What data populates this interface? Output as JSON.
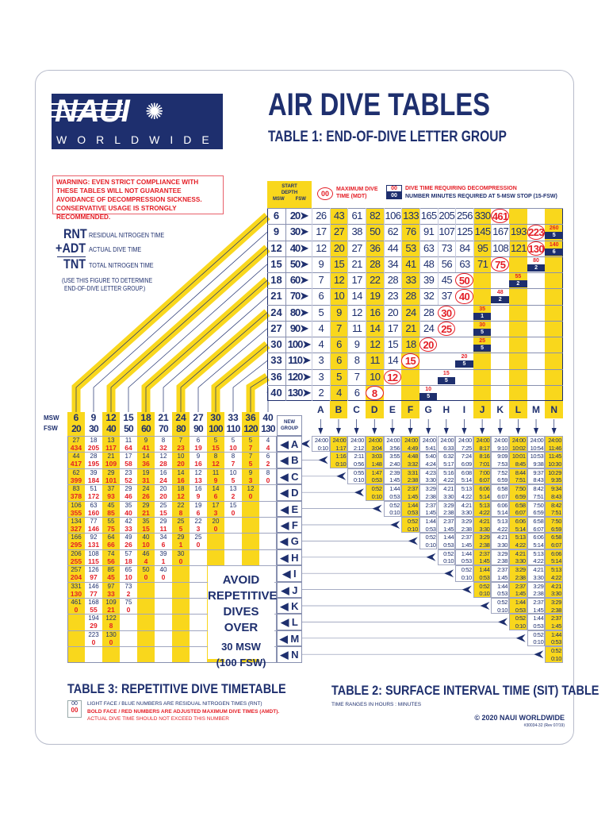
{
  "header": {
    "logo_text": "NAUI",
    "logo_subtext": "WORLDWIDE",
    "title": "AIR DIVE TABLES",
    "subtitle": "TABLE 1: END-OF-DIVE LETTER GROUP"
  },
  "warning": "WARNING: EVEN STRICT COMPLIANCE WITH THESE TABLES WILL NOT GUARANTEE AVOIDANCE OF DECOMPRESSION SICKNESS. CONSERVATIVE USAGE IS STRONGLY RECOMMENDED.",
  "formula": [
    {
      "abbr": "RNT",
      "desc": "RESIDUAL NITROGEN TIME"
    },
    {
      "abbr": "+ADT",
      "desc": "ACTUAL DIVE TIME"
    },
    {
      "abbr": "TNT",
      "desc": "TOTAL NITROGEN TIME"
    }
  ],
  "formula_note": [
    "(USE THIS FIGURE TO DETERMINE",
    "END-OF-DIVE LETTER GROUP.)"
  ],
  "table1": {
    "header": {
      "l1": "START",
      "l2": "DEPTH",
      "msw": "MSW",
      "fsw": "FSW"
    },
    "legend": {
      "sample": "00",
      "mdt": "MAXIMUM DIVE TIME (MDT)",
      "deco": "DIVE TIME REQUIRING DECOMPRESSION",
      "stop": "NUMBER MINUTES REQUIRED AT 5-MSW STOP (15-FSW)"
    },
    "groups": [
      "A",
      "B",
      "C",
      "D",
      "E",
      "F",
      "G",
      "H",
      "I",
      "J",
      "K",
      "L",
      "M",
      "N"
    ],
    "rows": [
      {
        "msw": "6",
        "fsw": "20",
        "cells": [
          "26",
          "43",
          "61",
          "82",
          "106",
          "133",
          "165",
          "205",
          "256",
          "330",
          {
            "mdt": "461"
          },
          null,
          null,
          null
        ]
      },
      {
        "msw": "9",
        "fsw": "30",
        "cells": [
          "17",
          "27",
          "38",
          "50",
          "62",
          "76",
          "91",
          "107",
          "125",
          "145",
          "167",
          "193",
          {
            "mdt": "223"
          },
          {
            "deco": "260",
            "stop": "5"
          }
        ]
      },
      {
        "msw": "12",
        "fsw": "40",
        "cells": [
          "12",
          "20",
          "27",
          "36",
          "44",
          "53",
          "63",
          "73",
          "84",
          "95",
          "108",
          "121",
          {
            "mdt": "130"
          },
          {
            "deco": "140",
            "stop": "6"
          }
        ]
      },
      {
        "msw": "15",
        "fsw": "50",
        "cells": [
          "9",
          "15",
          "21",
          "28",
          "34",
          "41",
          "48",
          "56",
          "63",
          "71",
          {
            "mdt": "75"
          },
          null,
          {
            "deco": "80",
            "stop": "2"
          },
          null
        ]
      },
      {
        "msw": "18",
        "fsw": "60",
        "cells": [
          "7",
          "12",
          "17",
          "22",
          "28",
          "33",
          "39",
          "45",
          {
            "mdt": "50"
          },
          null,
          null,
          {
            "deco": "55",
            "stop": "2"
          },
          null,
          null
        ]
      },
      {
        "msw": "21",
        "fsw": "70",
        "cells": [
          "6",
          "10",
          "14",
          "19",
          "23",
          "28",
          "32",
          "37",
          {
            "mdt": "40"
          },
          null,
          {
            "deco": "48",
            "stop": "2"
          },
          null,
          null,
          null
        ]
      },
      {
        "msw": "24",
        "fsw": "80",
        "cells": [
          "5",
          "9",
          "12",
          "16",
          "20",
          "24",
          "28",
          {
            "mdt": "30"
          },
          null,
          {
            "deco": "35",
            "stop": "1"
          },
          null,
          null,
          null,
          null
        ]
      },
      {
        "msw": "27",
        "fsw": "90",
        "cells": [
          "4",
          "7",
          "11",
          "14",
          "17",
          "21",
          "24",
          {
            "mdt": "25"
          },
          null,
          {
            "deco": "30",
            "stop": "5"
          },
          null,
          null,
          null,
          null
        ]
      },
      {
        "msw": "30",
        "fsw": "100",
        "cells": [
          "4",
          "6",
          "9",
          "12",
          "15",
          "18",
          {
            "mdt": "20"
          },
          null,
          null,
          {
            "deco": "25",
            "stop": "5"
          },
          null,
          null,
          null,
          null
        ]
      },
      {
        "msw": "33",
        "fsw": "110",
        "cells": [
          "3",
          "6",
          "8",
          "11",
          "14",
          {
            "mdt": "15"
          },
          null,
          null,
          {
            "deco": "20",
            "stop": "5"
          },
          null,
          null,
          null,
          null,
          null
        ]
      },
      {
        "msw": "36",
        "fsw": "120",
        "cells": [
          "3",
          "5",
          "7",
          "10",
          {
            "mdt": "12"
          },
          null,
          null,
          {
            "deco": "15",
            "stop": "5"
          },
          null,
          null,
          null,
          null,
          null,
          null
        ]
      },
      {
        "msw": "40",
        "fsw": "130",
        "cells": [
          "2",
          "4",
          "6",
          {
            "mdt": "8"
          },
          null,
          null,
          {
            "deco": "10",
            "stop": "5"
          },
          null,
          null,
          null,
          null,
          null,
          null,
          null
        ]
      }
    ]
  },
  "table3": {
    "title": "TABLE 3: REPETITIVE DIVE TIMETABLE",
    "msw_label": "MSW",
    "fsw_label": "FSW",
    "new_group_label": "NEW GROUP",
    "depths": [
      [
        "6",
        "20"
      ],
      [
        "9",
        "30"
      ],
      [
        "12",
        "40"
      ],
      [
        "15",
        "50"
      ],
      [
        "18",
        "60"
      ],
      [
        "21",
        "70"
      ],
      [
        "24",
        "80"
      ],
      [
        "27",
        "90"
      ],
      [
        "30",
        "100"
      ],
      [
        "33",
        "110"
      ],
      [
        "36",
        "120"
      ],
      [
        "40",
        "130"
      ]
    ],
    "rows": [
      [
        [
          "27",
          "434"
        ],
        [
          "18",
          "205"
        ],
        [
          "13",
          "117"
        ],
        [
          "11",
          "64"
        ],
        [
          "9",
          "41"
        ],
        [
          "8",
          "32"
        ],
        [
          "7",
          "23"
        ],
        [
          "6",
          "19"
        ],
        [
          "5",
          "15"
        ],
        [
          "5",
          "10"
        ],
        [
          "5",
          "7"
        ],
        [
          "4",
          "4"
        ]
      ],
      [
        [
          "44",
          "417"
        ],
        [
          "28",
          "195"
        ],
        [
          "21",
          "109"
        ],
        [
          "17",
          "58"
        ],
        [
          "14",
          "36"
        ],
        [
          "12",
          "28"
        ],
        [
          "10",
          "20"
        ],
        [
          "9",
          "16"
        ],
        [
          "8",
          "12"
        ],
        [
          "8",
          "7"
        ],
        [
          "7",
          "5"
        ],
        [
          "6",
          "2"
        ]
      ],
      [
        [
          "62",
          "399"
        ],
        [
          "39",
          "184"
        ],
        [
          "29",
          "101"
        ],
        [
          "23",
          "52"
        ],
        [
          "19",
          "31"
        ],
        [
          "16",
          "24"
        ],
        [
          "14",
          "16"
        ],
        [
          "12",
          "13"
        ],
        [
          "11",
          "9"
        ],
        [
          "10",
          "5"
        ],
        [
          "9",
          "3"
        ],
        [
          "8",
          "0"
        ]
      ],
      [
        [
          "83",
          "378"
        ],
        [
          "51",
          "172"
        ],
        [
          "37",
          "93"
        ],
        [
          "29",
          "46"
        ],
        [
          "24",
          "26"
        ],
        [
          "20",
          "20"
        ],
        [
          "18",
          "12"
        ],
        [
          "16",
          "9"
        ],
        [
          "14",
          "6"
        ],
        [
          "13",
          "2"
        ],
        [
          "12",
          "0"
        ]
      ],
      [
        [
          "106",
          "355"
        ],
        [
          "63",
          "160"
        ],
        [
          "45",
          "85"
        ],
        [
          "35",
          "40"
        ],
        [
          "29",
          "21"
        ],
        [
          "25",
          "15"
        ],
        [
          "22",
          "8"
        ],
        [
          "19",
          "6"
        ],
        [
          "17",
          "3"
        ],
        [
          "15",
          "0"
        ]
      ],
      [
        [
          "134",
          "327"
        ],
        [
          "77",
          "146"
        ],
        [
          "55",
          "75"
        ],
        [
          "42",
          "33"
        ],
        [
          "35",
          "15"
        ],
        [
          "29",
          "11"
        ],
        [
          "25",
          "5"
        ],
        [
          "22",
          "3"
        ],
        [
          "20",
          "0"
        ]
      ],
      [
        [
          "166",
          "295"
        ],
        [
          "92",
          "131"
        ],
        [
          "64",
          "66"
        ],
        [
          "49",
          "26"
        ],
        [
          "40",
          "10"
        ],
        [
          "34",
          "6"
        ],
        [
          "29",
          "1"
        ],
        [
          "25",
          "0"
        ]
      ],
      [
        [
          "206",
          "255"
        ],
        [
          "108",
          "115"
        ],
        [
          "74",
          "56"
        ],
        [
          "57",
          "18"
        ],
        [
          "46",
          "4"
        ],
        [
          "39",
          "1"
        ],
        [
          "30",
          "0"
        ]
      ],
      [
        [
          "257",
          "204"
        ],
        [
          "126",
          "97"
        ],
        [
          "85",
          "45"
        ],
        [
          "65",
          "10"
        ],
        [
          "50",
          "0"
        ],
        [
          "40",
          "0"
        ]
      ],
      [
        [
          "331",
          "130"
        ],
        [
          "146",
          "77"
        ],
        [
          "97",
          "33"
        ],
        [
          "73",
          "2"
        ]
      ],
      [
        [
          "461",
          "0"
        ],
        [
          "168",
          "55"
        ],
        [
          "109",
          "21"
        ],
        [
          "75",
          "0"
        ]
      ],
      [
        null,
        [
          "194",
          "29"
        ],
        [
          "122",
          "8"
        ]
      ],
      [
        null,
        [
          "223",
          "0"
        ],
        [
          "130",
          "0"
        ]
      ],
      []
    ],
    "avoid": [
      "AVOID",
      "REPETITIVE",
      "DIVES OVER"
    ],
    "avoid_depth": [
      "30 MSW",
      "(100 FSW)"
    ],
    "legend_sample_light": "00",
    "legend_sample_bold": "00",
    "legend_light": "LIGHT FACE / BLUE NUMBERS ARE RESIDUAL NITROGEN TIMES (RNT)",
    "legend_bold": "BOLD FACE / RED NUMBERS ARE ADJUSTED MAXIMUM DIVE TIMES (AMDT).",
    "legend_bold2": "ACTUAL DIVE TIME SHOULD NOT EXCEED THIS NUMBER"
  },
  "table2": {
    "title": "TABLE 2: SURFACE INTERVAL TIME (SIT) TABLE",
    "note": "TIME RANGES IN HOURS : MINUTES",
    "columns": [
      [
        [
          "24:00",
          "0:10"
        ]
      ],
      [
        [
          "24:00",
          "1:17"
        ],
        [
          "1:16",
          "0:10"
        ]
      ],
      [
        [
          "24:00",
          "2:12"
        ],
        [
          "2:11",
          "0:56"
        ],
        [
          "0:55",
          "0:10"
        ]
      ],
      [
        [
          "24:00",
          "3:04"
        ],
        [
          "3:03",
          "1:48"
        ],
        [
          "1:47",
          "0:53"
        ],
        [
          "0:52",
          "0:10"
        ]
      ],
      [
        [
          "24:00",
          "3:56"
        ],
        [
          "3:55",
          "2:40"
        ],
        [
          "2:39",
          "1:45"
        ],
        [
          "1:44",
          "0:53"
        ],
        [
          "0:52",
          "0:10"
        ]
      ],
      [
        [
          "24:00",
          "4:49"
        ],
        [
          "4:48",
          "3:32"
        ],
        [
          "3:31",
          "2:38"
        ],
        [
          "2:37",
          "1:45"
        ],
        [
          "1:44",
          "0:53"
        ],
        [
          "0:52",
          "0:10"
        ]
      ],
      [
        [
          "24:00",
          "5:41"
        ],
        [
          "5:40",
          "4:24"
        ],
        [
          "4:23",
          "3:30"
        ],
        [
          "3:29",
          "2:38"
        ],
        [
          "2:37",
          "1:45"
        ],
        [
          "1:44",
          "0:53"
        ],
        [
          "0:52",
          "0:10"
        ]
      ],
      [
        [
          "24:00",
          "6:33"
        ],
        [
          "6:32",
          "5:17"
        ],
        [
          "5:16",
          "4:22"
        ],
        [
          "4:21",
          "3:30"
        ],
        [
          "3:29",
          "2:38"
        ],
        [
          "2:37",
          "1:45"
        ],
        [
          "1:44",
          "0:53"
        ],
        [
          "0:52",
          "0:10"
        ]
      ],
      [
        [
          "24:00",
          "7:25"
        ],
        [
          "7:24",
          "6:09"
        ],
        [
          "6:08",
          "5:14"
        ],
        [
          "5:13",
          "4:22"
        ],
        [
          "4:21",
          "3:30"
        ],
        [
          "3:29",
          "2:38"
        ],
        [
          "2:37",
          "1:45"
        ],
        [
          "1:44",
          "0:53"
        ],
        [
          "0:52",
          "0:10"
        ]
      ],
      [
        [
          "24:00",
          "8:17"
        ],
        [
          "8:16",
          "7:01"
        ],
        [
          "7:00",
          "6:07"
        ],
        [
          "6:06",
          "5:14"
        ],
        [
          "5:13",
          "4:22"
        ],
        [
          "4:21",
          "3:30"
        ],
        [
          "3:29",
          "2:38"
        ],
        [
          "2:37",
          "1:45"
        ],
        [
          "1:44",
          "0:53"
        ],
        [
          "0:52",
          "0:10"
        ]
      ],
      [
        [
          "24:00",
          "9:10"
        ],
        [
          "9:09",
          "7:53"
        ],
        [
          "7:52",
          "6:59"
        ],
        [
          "6:58",
          "6:07"
        ],
        [
          "6:06",
          "5:14"
        ],
        [
          "5:13",
          "4:22"
        ],
        [
          "4:21",
          "3:30"
        ],
        [
          "3:29",
          "2:38"
        ],
        [
          "2:37",
          "1:45"
        ],
        [
          "1:44",
          "0:53"
        ],
        [
          "0:52",
          "0:10"
        ]
      ],
      [
        [
          "24:00",
          "10:02"
        ],
        [
          "10:01",
          "8:45"
        ],
        [
          "8:44",
          "7:51"
        ],
        [
          "7:50",
          "6:59"
        ],
        [
          "6:58",
          "6:07"
        ],
        [
          "6:06",
          "5:14"
        ],
        [
          "5:13",
          "4:22"
        ],
        [
          "4:21",
          "3:30"
        ],
        [
          "3:29",
          "2:38"
        ],
        [
          "2:37",
          "1:45"
        ],
        [
          "1:44",
          "0:53"
        ],
        [
          "0:52",
          "0:10"
        ]
      ],
      [
        [
          "24:00",
          "10:54"
        ],
        [
          "10:53",
          "9:38"
        ],
        [
          "9:37",
          "8:43"
        ],
        [
          "8:42",
          "7:51"
        ],
        [
          "7:50",
          "6:59"
        ],
        [
          "6:58",
          "6:07"
        ],
        [
          "6:06",
          "5:14"
        ],
        [
          "5:13",
          "4:22"
        ],
        [
          "4:21",
          "3:30"
        ],
        [
          "3:29",
          "2:38"
        ],
        [
          "2:37",
          "1:45"
        ],
        [
          "1:44",
          "0:53"
        ],
        [
          "0:52",
          "0:10"
        ]
      ],
      [
        [
          "24:00",
          "11:46"
        ],
        [
          "11:45",
          "10:30"
        ],
        [
          "10:29",
          "9:35"
        ],
        [
          "9:34",
          "8:43"
        ],
        [
          "8:42",
          "7:51"
        ],
        [
          "7:50",
          "6:59"
        ],
        [
          "6:58",
          "6:07"
        ],
        [
          "6:06",
          "5:14"
        ],
        [
          "5:13",
          "4:22"
        ],
        [
          "4:21",
          "3:30"
        ],
        [
          "3:29",
          "2:38"
        ],
        [
          "2:37",
          "1:45"
        ],
        [
          "1:44",
          "0:53"
        ],
        [
          "0:52",
          "0:10"
        ]
      ]
    ]
  },
  "footer": {
    "copyright": "© 2020 NAUI WORLDWIDE",
    "code": "#30034-32 (Rev 07/19)"
  },
  "colors": {
    "navy": "#1e2f6e",
    "yellow": "#f9d71c",
    "red": "#e41e26"
  }
}
